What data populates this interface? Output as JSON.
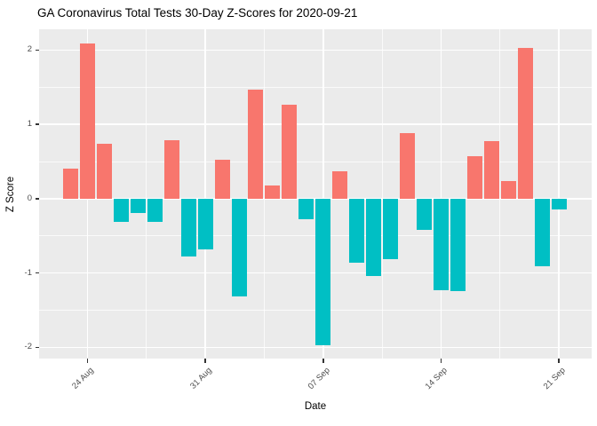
{
  "chart_data": {
    "type": "bar",
    "title": "GA Coronavirus Total Tests 30-Day Z-Scores for 2020-09-21",
    "xlabel": "Date",
    "ylabel": "Z Score",
    "ylim": [
      -2.15,
      2.28
    ],
    "grid": "on",
    "legend": "none",
    "categories": [
      "23 Aug",
      "24 Aug",
      "25 Aug",
      "26 Aug",
      "27 Aug",
      "28 Aug",
      "29 Aug",
      "30 Aug",
      "31 Aug",
      "01 Sep",
      "02 Sep",
      "03 Sep",
      "04 Sep",
      "05 Sep",
      "06 Sep",
      "07 Sep",
      "08 Sep",
      "09 Sep",
      "10 Sep",
      "11 Sep",
      "12 Sep",
      "13 Sep",
      "14 Sep",
      "15 Sep",
      "16 Sep",
      "17 Sep",
      "18 Sep",
      "19 Sep",
      "20 Sep",
      "21 Sep"
    ],
    "values": [
      0.41,
      2.09,
      0.74,
      -0.31,
      -0.19,
      -0.31,
      0.79,
      -0.78,
      -0.68,
      0.52,
      -1.31,
      1.47,
      0.18,
      1.27,
      -0.28,
      -1.97,
      0.37,
      -0.86,
      -1.04,
      -0.81,
      0.88,
      -0.42,
      -1.23,
      -1.24,
      0.57,
      0.78,
      0.24,
      2.03,
      -0.91,
      -0.14
    ],
    "yticks_major": [
      2,
      1,
      0,
      -1,
      -2
    ],
    "ytick_labels": [
      "2",
      "1",
      "0",
      "-1",
      "-2"
    ],
    "yticks_minor": [
      1.5,
      0.5,
      -0.5,
      -1.5
    ],
    "x_tick_labels": [
      "24 Aug",
      "31 Aug",
      "07 Sep",
      "14 Sep",
      "21 Sep"
    ],
    "x_tick_indices": [
      1,
      8,
      15,
      22,
      29
    ],
    "x_minor_indices": [
      4.5,
      11.5,
      18.5,
      25.5
    ],
    "colors": {
      "positive": "#F8766D",
      "negative": "#00BFC4",
      "panel_background": "#EBEBEB",
      "gridline": "#FFFFFF",
      "tick_mark": "#333333",
      "tick_label": "#4D4D4D",
      "title": "#000000"
    }
  }
}
